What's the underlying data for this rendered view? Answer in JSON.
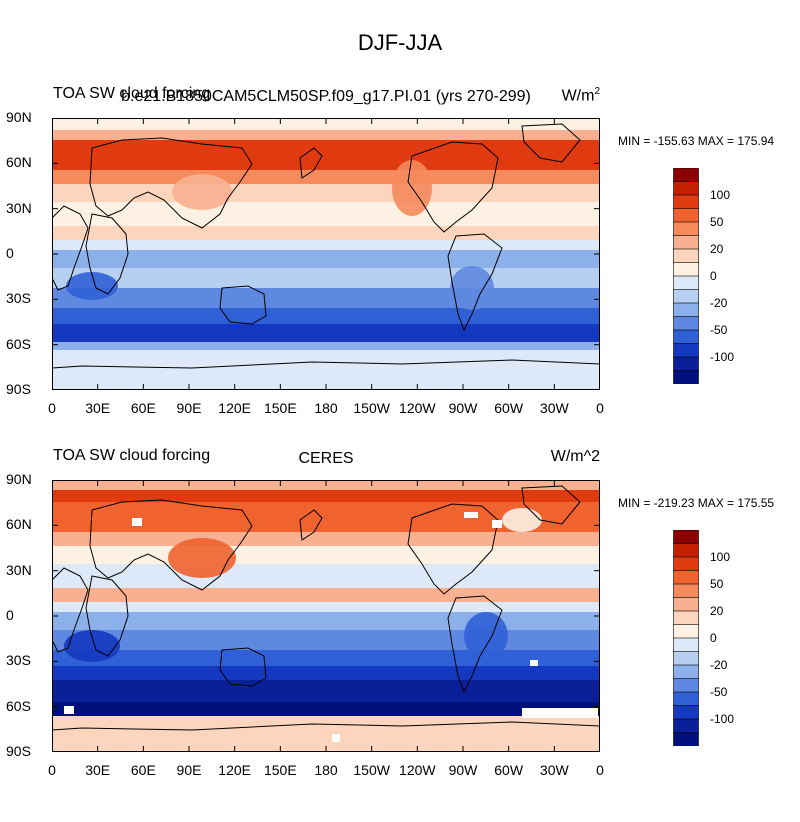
{
  "figure": {
    "title": "DJF-JJA",
    "xticks": [
      "0",
      "30E",
      "60E",
      "90E",
      "120E",
      "150E",
      "180",
      "150W",
      "120W",
      "90W",
      "60W",
      "30W",
      "0"
    ],
    "yticks": [
      "90N",
      "60N",
      "30N",
      "0",
      "30S",
      "60S",
      "90S"
    ],
    "colorbar_labels": [
      "100",
      "50",
      "20",
      "0",
      "-20",
      "-50",
      "-100"
    ],
    "colorbar_colors": [
      "#8b0000",
      "#c42000",
      "#e03a10",
      "#f0622e",
      "#f58a5c",
      "#f8b090",
      "#fcd5bc",
      "#fdf1e4",
      "#dde9f8",
      "#b7d0f2",
      "#8cb0ea",
      "#5f88e0",
      "#3060d6",
      "#1438c0",
      "#0a2098",
      "#00107a"
    ]
  },
  "panels": [
    {
      "title_left": "TOA SW cloud forcing",
      "title_center": "b.e21.B1850CAM5CLM50SP.f09_g17.PI.01 (yrs 270-299)",
      "title_right": "W/m",
      "title_right_sup": "2",
      "minmax": "MIN = -155.63 MAX = 175.94"
    },
    {
      "title_left": "TOA SW cloud forcing",
      "title_center": "CERES",
      "title_right": "W/m^2",
      "title_right_sup": "",
      "minmax": "MIN = -219.23 MAX = 175.55"
    }
  ]
}
